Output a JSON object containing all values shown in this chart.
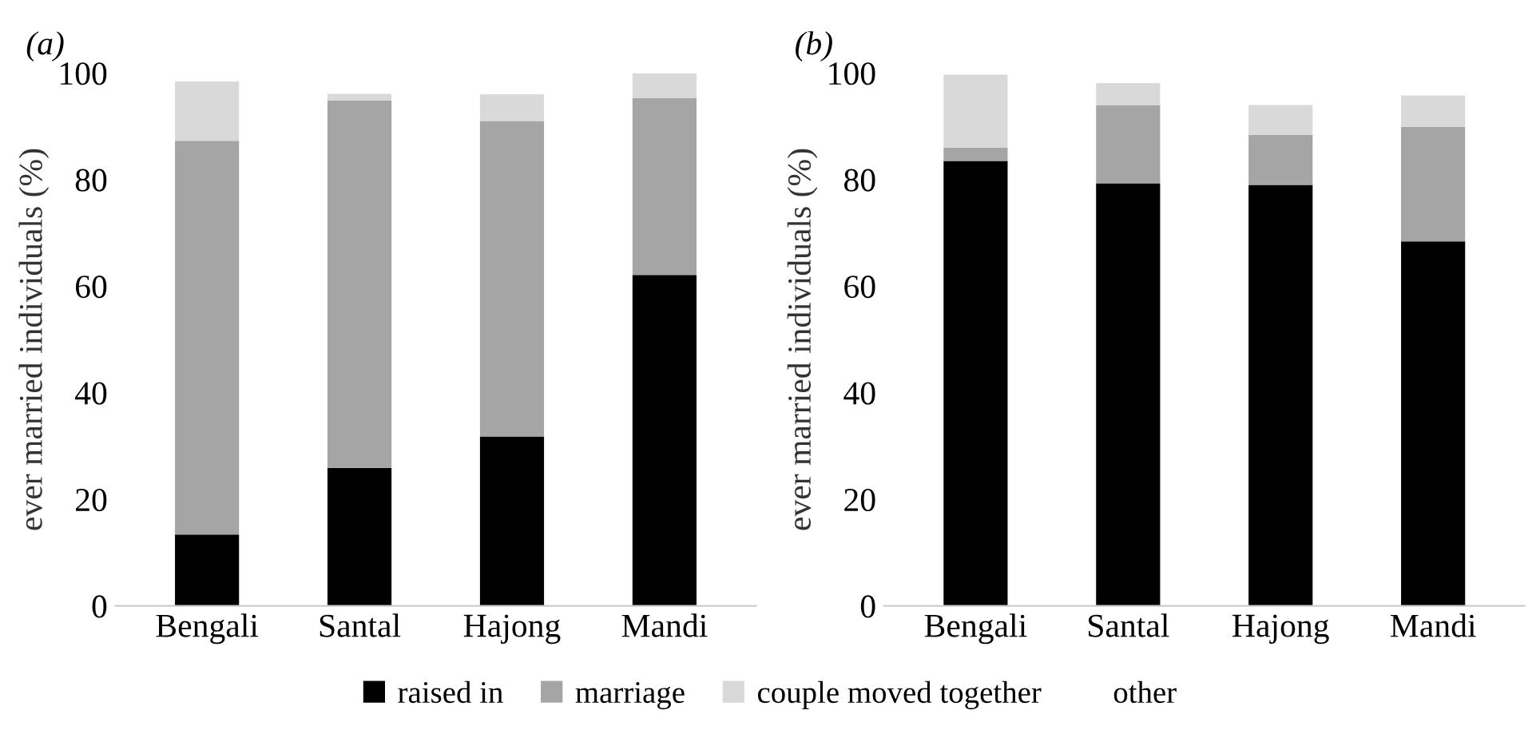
{
  "chart_data": [
    {
      "type": "bar",
      "title": "(a)",
      "ylabel": "ever married individuals (%)",
      "categories": [
        "Bengali",
        "Santal",
        "Hajong",
        "Mandi"
      ],
      "stacked": true,
      "ylim": [
        0,
        100
      ],
      "yticks": [
        0,
        20,
        40,
        60,
        80,
        100
      ],
      "grid": false,
      "legend": "bottom",
      "series": [
        {
          "name": "raised in",
          "color": "#000000",
          "values": [
            13.4,
            25.9,
            31.8,
            62.1
          ]
        },
        {
          "name": "marriage",
          "color": "#a6a5a5",
          "values": [
            73.9,
            68.9,
            59.2,
            33.2
          ]
        },
        {
          "name": "couple moved together",
          "color": "#d9d9d9",
          "values": [
            11.1,
            1.3,
            5.0,
            4.6
          ]
        },
        {
          "name": "other",
          "values": [
            null,
            null,
            null,
            null
          ]
        }
      ]
    },
    {
      "type": "bar",
      "title": "(b)",
      "ylabel": "ever married individuals (%)",
      "categories": [
        "Bengali",
        "Santal",
        "Hajong",
        "Mandi"
      ],
      "stacked": true,
      "ylim": [
        0,
        100
      ],
      "yticks": [
        0,
        20,
        40,
        60,
        80,
        100
      ],
      "grid": false,
      "series": [
        {
          "color": "#000000",
          "values": [
            83.5,
            79.3,
            79.0,
            68.4
          ]
        },
        {
          "color": "#a6a5a5",
          "values": [
            2.5,
            14.7,
            9.4,
            21.5
          ]
        },
        {
          "color": "#d9d9d9",
          "values": [
            13.7,
            4.1,
            5.6,
            5.9
          ]
        }
      ]
    }
  ]
}
